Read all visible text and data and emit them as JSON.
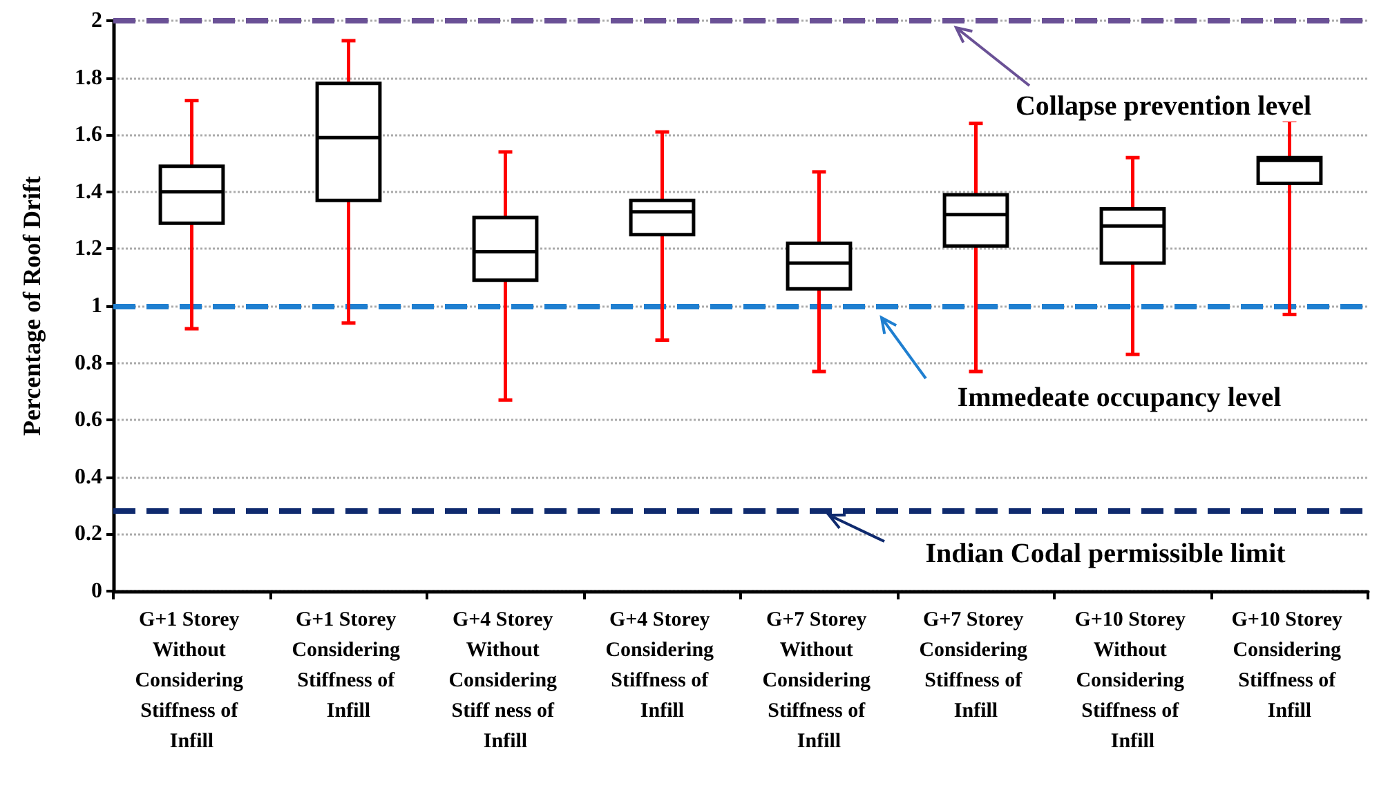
{
  "chart_data": {
    "type": "box",
    "ylabel": "Percentage of Roof Drift",
    "categories": [
      "G+1 Storey Without Considering Stiffness of Infill",
      "G+1 Storey Considering Stiffness of Infill",
      "G+4 Storey Without Considering Stiff ness of Infill",
      "G+4 Storey Considering Stiffness of Infill",
      "G+7 Storey Without Considering Stiffness of Infill",
      "G+7 Storey Considering Stiffness of Infill",
      "G+10 Storey Without Considering Stiffness of Infill",
      "G+10 Storey Considering Stiffness of Infill"
    ],
    "series": [
      {
        "color": "#000000",
        "boxes": [
          {
            "low": 0.92,
            "q1": 1.29,
            "median": 1.4,
            "q3": 1.49,
            "high": 1.72
          },
          {
            "low": 0.94,
            "q1": 1.37,
            "median": 1.59,
            "q3": 1.78,
            "high": 1.93
          },
          {
            "low": 0.67,
            "q1": 1.09,
            "median": 1.19,
            "q3": 1.31,
            "high": 1.54
          },
          {
            "low": 0.88,
            "q1": 1.25,
            "median": 1.33,
            "q3": 1.37,
            "high": 1.61
          },
          {
            "low": 0.77,
            "q1": 1.06,
            "median": 1.15,
            "q3": 1.22,
            "high": 1.47
          },
          {
            "low": 0.77,
            "q1": 1.21,
            "median": 1.32,
            "q3": 1.39,
            "high": 1.64
          },
          {
            "low": 0.83,
            "q1": 1.15,
            "median": 1.28,
            "q3": 1.34,
            "high": 1.52
          },
          {
            "low": 0.97,
            "q1": 1.43,
            "median": 1.51,
            "q3": 1.52,
            "high": 1.65
          }
        ]
      }
    ],
    "ylim": [
      0,
      2
    ],
    "yticks": [
      0,
      0.2,
      0.4,
      0.6,
      0.8,
      1,
      1.2,
      1.4,
      1.6,
      1.8,
      2
    ],
    "grid": "y",
    "ref_lines": [
      {
        "axis": "y",
        "value": 2,
        "label": "Collapse prevention level",
        "color": "#6a5196",
        "line_style": "dashed"
      },
      {
        "axis": "y",
        "value": 1,
        "label": "Immedeate occupancy level",
        "color": "#1f7fd0",
        "line_style": "dashed"
      },
      {
        "axis": "y",
        "value": 0.28,
        "label": "Indian Codal permissible limit",
        "color": "#0f2a6e",
        "line_style": "dashed"
      }
    ]
  }
}
